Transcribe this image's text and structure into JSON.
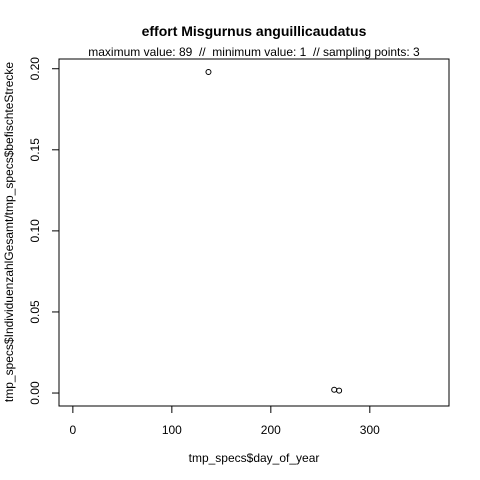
{
  "chart_data": {
    "type": "scatter",
    "title": "effort Misgurnus anguillicaudatus",
    "subtitle": "maximum value: 89  //  minimum value: 1  // sampling points: 3",
    "xlabel": "tmp_specs$day_of_year",
    "ylabel": "tmp_specs$IndividuenzahlGesamt/tmp_specs$befischteStrecke",
    "xlim": [
      -14,
      380
    ],
    "ylim": [
      -0.008,
      0.206
    ],
    "xticks": [
      0,
      100,
      200,
      300
    ],
    "yticks": [
      0.0,
      0.05,
      0.1,
      0.15,
      0.2
    ],
    "xtick_labels": [
      "0",
      "100",
      "200",
      "300"
    ],
    "ytick_labels": [
      "0.00",
      "0.05",
      "0.10",
      "0.15",
      "0.20"
    ],
    "points": [
      {
        "x": 137,
        "y": 0.198
      },
      {
        "x": 264,
        "y": 0.002
      },
      {
        "x": 269,
        "y": 0.0015
      }
    ],
    "grid": false,
    "legend": "none"
  }
}
